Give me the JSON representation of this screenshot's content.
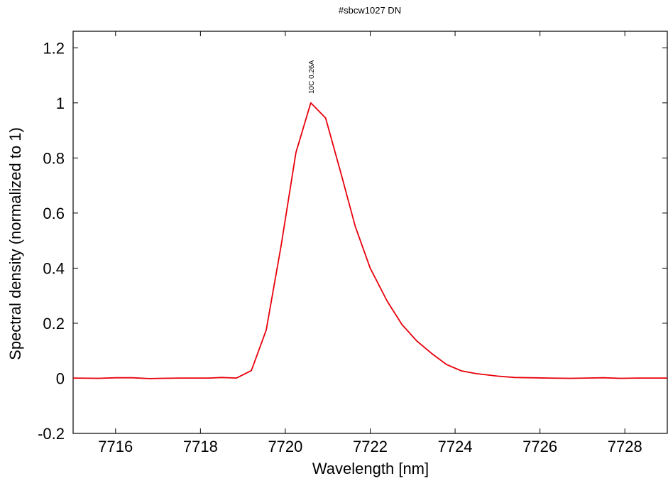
{
  "chart_data": {
    "type": "line",
    "title": "#sbcw1027 DN",
    "xlabel": "Wavelength [nm]",
    "ylabel": "Spectral density (normalized to 1)",
    "xlim": [
      7715,
      7729
    ],
    "ylim": [
      -0.2,
      1.26
    ],
    "xticks": [
      7716,
      7718,
      7720,
      7722,
      7724,
      7726,
      7728
    ],
    "xtick_labels": [
      "7716",
      "7718",
      "7720",
      "7722",
      "7724",
      "7726",
      "7728"
    ],
    "yticks": [
      -0.2,
      0,
      0.2,
      0.4,
      0.6,
      0.8,
      1,
      1.2
    ],
    "ytick_labels": [
      "-0.2",
      "0",
      "0.2",
      "0.4",
      "0.6",
      "0.8",
      "1",
      "1.2"
    ],
    "grid": false,
    "series": [
      {
        "color": "#e8000b",
        "x": [
          7715.0,
          7715.6,
          7716.0,
          7716.4,
          7716.8,
          7717.1,
          7717.5,
          7717.8,
          7718.2,
          7718.5,
          7718.85,
          7719.2,
          7719.55,
          7719.9,
          7720.25,
          7720.6,
          7720.95,
          7721.3,
          7721.65,
          7722.0,
          7722.4,
          7722.75,
          7723.1,
          7723.45,
          7723.8,
          7724.15,
          7724.5,
          7725.0,
          7725.4,
          7725.8,
          7726.2,
          7726.7,
          7727.1,
          7727.5,
          7727.9,
          7728.3,
          7728.7,
          7729.0
        ],
        "y": [
          0.001,
          0.0,
          0.002,
          0.002,
          -0.001,
          0.0,
          0.001,
          0.001,
          0.001,
          0.003,
          0.001,
          0.028,
          0.175,
          0.48,
          0.82,
          1.0,
          0.945,
          0.75,
          0.55,
          0.4,
          0.28,
          0.195,
          0.135,
          0.09,
          0.05,
          0.027,
          0.017,
          0.008,
          0.003,
          0.002,
          0.001,
          0.0,
          0.001,
          0.002,
          0.0,
          0.001,
          0.001,
          0.001
        ]
      }
    ],
    "annotations": [
      {
        "text": "10C 0.26A",
        "x": 7720.6,
        "y": 1.02
      }
    ]
  }
}
